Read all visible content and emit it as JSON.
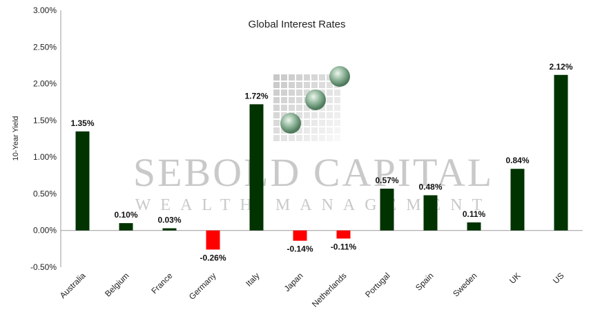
{
  "watermark": {
    "line1": "SEBOLD CAPITAL",
    "line2": "WEALTH MANAGEMENT"
  },
  "chart_data": {
    "type": "bar",
    "title": "Global Interest Rates",
    "ylabel": "10-Year Yield",
    "xlabel": "",
    "ylim": [
      -0.5,
      3.0
    ],
    "y_ticks": [
      "-0.50%",
      "0.00%",
      "0.50%",
      "1.00%",
      "1.50%",
      "2.00%",
      "2.50%",
      "3.00%"
    ],
    "categories": [
      "Australia",
      "Belgium",
      "France",
      "Germany",
      "Italy",
      "Japan",
      "Netherlands",
      "Portugal",
      "Spain",
      "Sweden",
      "UK",
      "US"
    ],
    "values": [
      1.35,
      0.1,
      0.03,
      -0.26,
      1.72,
      -0.14,
      -0.11,
      0.57,
      0.48,
      0.11,
      0.84,
      2.12
    ],
    "data_labels": [
      "1.35%",
      "0.10%",
      "0.03%",
      "-0.26%",
      "1.72%",
      "-0.14%",
      "-0.11%",
      "0.57%",
      "0.48%",
      "0.11%",
      "0.84%",
      "2.12%"
    ],
    "colors": {
      "positive": "#003300",
      "negative": "#ff0000"
    },
    "grid": false,
    "legend": "none"
  }
}
